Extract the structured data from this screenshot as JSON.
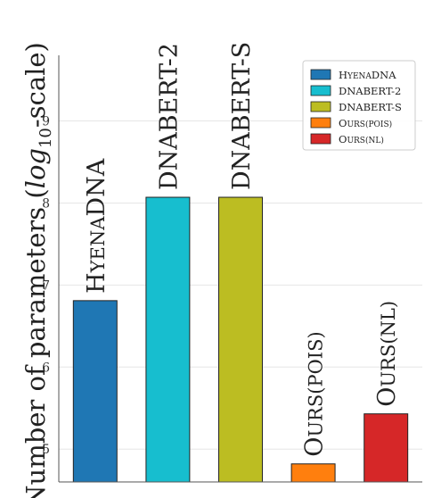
{
  "chart_data": {
    "type": "bar",
    "ylabel_main": "Number of parameters (",
    "ylabel_log": "log",
    "ylabel_sub": "10",
    "ylabel_tail": "-scale)",
    "ylim": [
      4.6,
      9.8
    ],
    "yticks": [
      "5",
      "6",
      "7",
      "8",
      "9"
    ],
    "grid": true,
    "legend_position": "top-right",
    "categories": [
      "HyenaDNA",
      "DNABERT-2",
      "DNABERT-S",
      "Ours(pois)",
      "Ours(nl)"
    ],
    "values": [
      6.81,
      8.07,
      8.07,
      4.82,
      5.43
    ],
    "colors": [
      "#1f77b4",
      "#17becf",
      "#bcbd22",
      "#ff7f0e",
      "#d62728"
    ],
    "bar_labels": [
      {
        "lead": "H",
        "rest": "YENA",
        "tail": "DNA",
        "smallcaps": true
      },
      {
        "lead": "DNABERT-2",
        "rest": "",
        "tail": "",
        "smallcaps": false
      },
      {
        "lead": "DNABERT-S",
        "rest": "",
        "tail": "",
        "smallcaps": false
      },
      {
        "lead": "O",
        "rest": "URS",
        "tail": "(POIS)",
        "smallcaps": true
      },
      {
        "lead": "O",
        "rest": "URS",
        "tail": "(NL)",
        "smallcaps": true
      }
    ],
    "legend": [
      {
        "lead": "H",
        "rest": "YENA",
        "tail": "DNA"
      },
      {
        "lead": "DNABERT-2",
        "rest": "",
        "tail": ""
      },
      {
        "lead": "DNABERT-S",
        "rest": "",
        "tail": ""
      },
      {
        "lead": "O",
        "rest": "URS",
        "tail": "(POIS)"
      },
      {
        "lead": "O",
        "rest": "URS",
        "tail": "(NL)"
      }
    ]
  }
}
